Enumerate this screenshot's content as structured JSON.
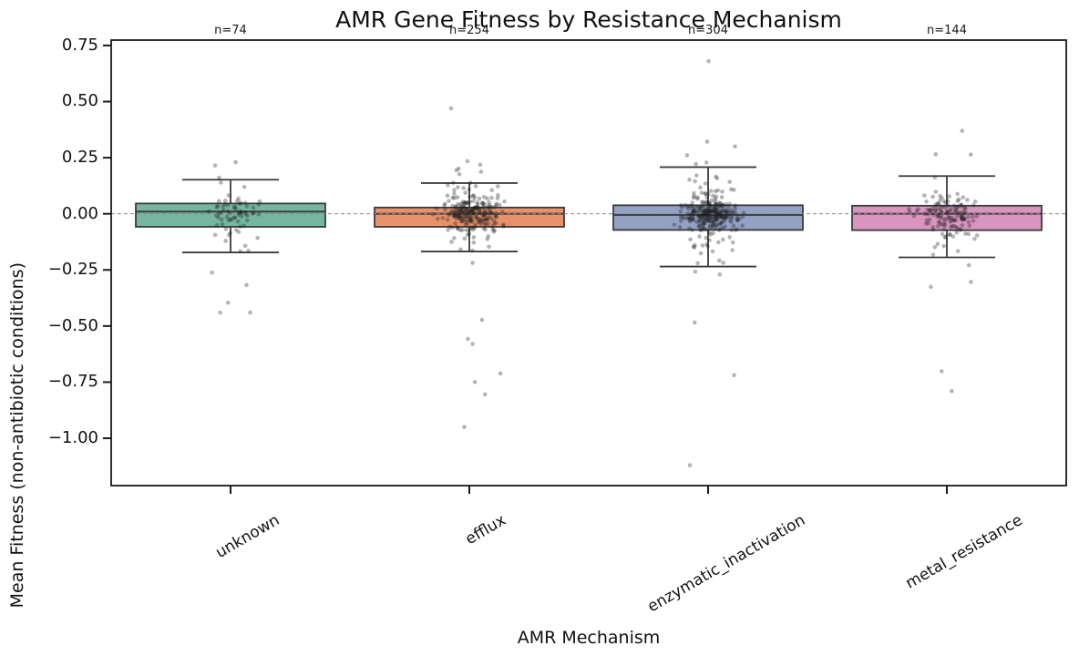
{
  "figure": {
    "title": "AMR Gene Fitness by Resistance Mechanism",
    "xlabel": "AMR Mechanism",
    "ylabel": "Mean Fitness (non-antibiotic conditions)"
  },
  "chart_data": {
    "type": "box",
    "overlay": "strip-jitter-points",
    "title": "AMR Gene Fitness by Resistance Mechanism",
    "xlabel": "AMR Mechanism",
    "ylabel": "Mean Fitness (non-antibiotic conditions)",
    "grid": false,
    "legend": "none",
    "ylim": [
      -1.211,
      0.774
    ],
    "yticks": [
      0.75,
      0.5,
      0.25,
      0.0,
      -0.25,
      -0.5,
      -0.75,
      -1.0
    ],
    "ytick_labels": [
      "0.75",
      "0.50",
      "0.25",
      "0.00",
      "−0.25",
      "−0.50",
      "−0.75",
      "−1.00"
    ],
    "zero_line": {
      "value": 0.0,
      "style": "dashed",
      "color": "#8a8a8a"
    },
    "categories": [
      "unknown",
      "efflux",
      "enzymatic_inactivation",
      "metal_resistance"
    ],
    "annotations": [
      "n=74",
      "n=254",
      "n=304",
      "n=144"
    ],
    "groups": [
      {
        "label": "unknown",
        "n": 74,
        "annotation": "n=74",
        "color": "#74B6A0",
        "median": 0.01,
        "q1": -0.058,
        "q3": 0.046,
        "whisker_low": -0.172,
        "whisker_high": 0.152,
        "points_min": -0.44,
        "points_max": 0.23
      },
      {
        "label": "efflux",
        "n": 254,
        "annotation": "n=254",
        "color": "#E8916B",
        "median": 0.0,
        "q1": -0.058,
        "q3": 0.028,
        "whisker_low": -0.168,
        "whisker_high": 0.137,
        "points_min": -0.95,
        "points_max": 0.47
      },
      {
        "label": "enzymatic_inactivation",
        "n": 304,
        "annotation": "n=304",
        "color": "#93A2C4",
        "median": -0.005,
        "q1": -0.072,
        "q3": 0.038,
        "whisker_low": -0.235,
        "whisker_high": 0.208,
        "points_min": -1.12,
        "points_max": 0.68
      },
      {
        "label": "metal_resistance",
        "n": 144,
        "annotation": "n=144",
        "color": "#D995BF",
        "median": 0.0,
        "q1": -0.073,
        "q3": 0.036,
        "whisker_low": -0.194,
        "whisker_high": 0.168,
        "points_min": -0.79,
        "points_max": 0.37
      }
    ],
    "style": {
      "box_edge_color": "#3b3b3b",
      "median_color": "#3b3b3b",
      "spine_color": "#1a1a1a",
      "point_color": "#1f1f1f",
      "point_alpha": 0.33
    }
  }
}
